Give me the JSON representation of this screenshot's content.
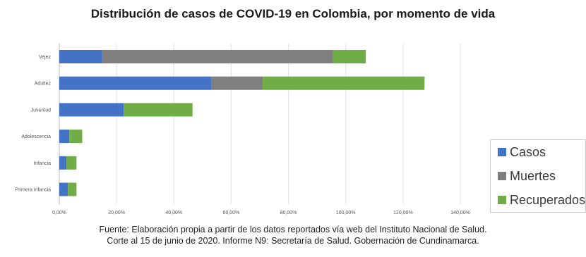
{
  "chart_data": {
    "type": "bar",
    "orientation": "horizontal",
    "stacked": true,
    "title": "Distribución de casos de COVID-19 en Colombia, por momento de vida",
    "categories": [
      "Vejez",
      "Adultez",
      "Juventud",
      "Adolescencia",
      "Infancia",
      "Primera infancia"
    ],
    "series": [
      {
        "name": "Casos",
        "color": "#4472c4",
        "values": [
          15,
          53,
          22.5,
          3.5,
          2.5,
          3
        ]
      },
      {
        "name": "Muertes",
        "color": "#7f7f7f",
        "values": [
          80.5,
          18,
          0,
          0,
          0,
          0
        ]
      },
      {
        "name": "Recuperados",
        "color": "#70ad47",
        "values": [
          11.5,
          56.5,
          24,
          4.5,
          3.5,
          3
        ]
      }
    ],
    "x_ticks": [
      "0,00%",
      "20,00%",
      "40,00%",
      "60,00%",
      "80,00%",
      "100,00%",
      "120,00%",
      "140,00%"
    ],
    "xlim": [
      0,
      140
    ],
    "xlabel": "",
    "ylabel": "",
    "grid": true,
    "legend_position": "bottom-right"
  },
  "footnote": {
    "line1": "Fuente: Elaboración propia a partir de los datos reportados vía web del Instituto Nacional de Salud.",
    "line2": "Corte al 15 de junio de 2020. Informe N9: Secretaría de Salud. Gobernación de Cundinamarca."
  }
}
